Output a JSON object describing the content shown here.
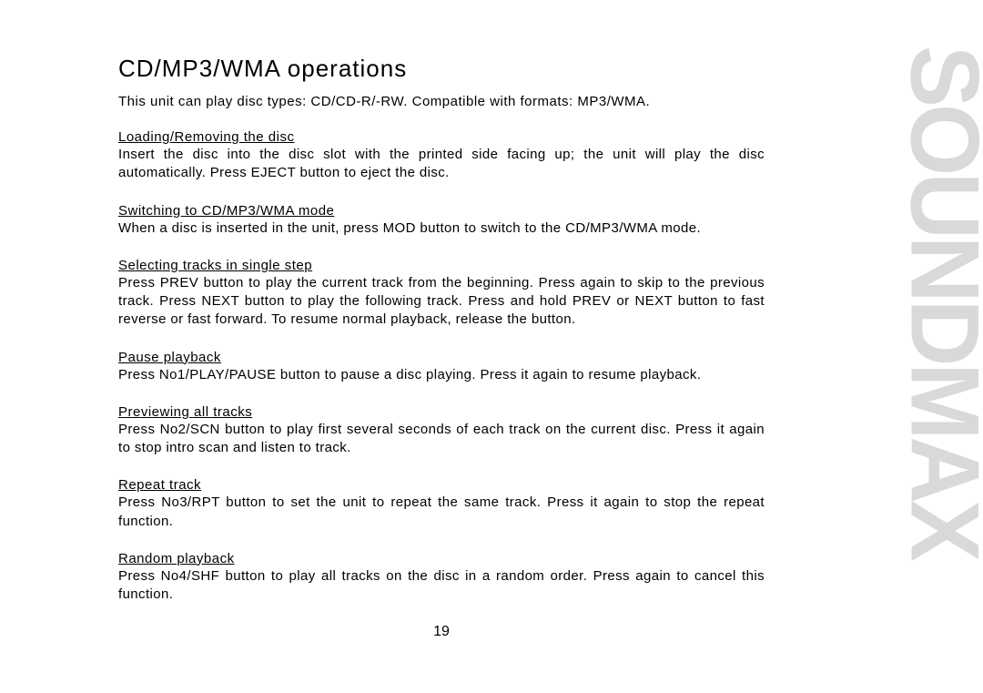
{
  "brand_watermark": "SOUNDMAX",
  "page_number": "19",
  "title": "CD/MP3/WMA operations",
  "intro": "This unit can play disc types: CD/CD-R/-RW. Compatible with formats: MP3/WMA.",
  "sections": [
    {
      "heading": "Loading/Removing the disc",
      "body": "Insert the disc into the disc slot with the printed side facing up; the unit will play the disc automatically. Press EJECT button to eject the disc."
    },
    {
      "heading": "Switching to CD/MP3/WMA mode",
      "body": "When a disc is inserted in the unit, press MOD button to switch to the CD/MP3/WMA mode."
    },
    {
      "heading": "Selecting tracks in single step",
      "body": "Press PREV button to play the current track from the beginning. Press again to skip to the previous track. Press NEXT button to play the following track. Press and hold PREV or NEXT button to fast reverse or fast forward. To resume normal playback, release the button."
    },
    {
      "heading": "Pause playback",
      "body": "Press No1/PLAY/PAUSE button to pause a disc playing. Press it again to resume playback."
    },
    {
      "heading": "Previewing all tracks",
      "body": "Press No2/SCN button to play first several seconds of each track on the current disc. Press it again to stop intro scan and listen to track."
    },
    {
      "heading": "Repeat track",
      "body": "Press No3/RPT button to set the unit to repeat the same track. Press it again to stop the repeat function."
    },
    {
      "heading": "Random playback",
      "body": "Press No4/SHF button to play all tracks on the disc in a random order. Press again to cancel this function."
    }
  ],
  "colors": {
    "background": "#ffffff",
    "text": "#000000",
    "watermark": "#d9d9d9"
  }
}
